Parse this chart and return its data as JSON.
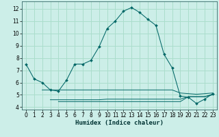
{
  "xlabel": "Humidex (Indice chaleur)",
  "bg_color": "#cceee8",
  "grid_color": "#aaddcc",
  "line_color": "#006666",
  "xlim": [
    -0.5,
    23.5
  ],
  "ylim": [
    3.8,
    12.6
  ],
  "yticks": [
    4,
    5,
    6,
    7,
    8,
    9,
    10,
    11,
    12
  ],
  "xticks": [
    0,
    1,
    2,
    3,
    4,
    5,
    6,
    7,
    8,
    9,
    10,
    11,
    12,
    13,
    14,
    15,
    16,
    17,
    18,
    19,
    20,
    21,
    22,
    23
  ],
  "series1_x": [
    0,
    1,
    2,
    3,
    4,
    5,
    6,
    7,
    8,
    9,
    10,
    11,
    12,
    13,
    14,
    15,
    16,
    17,
    18,
    19,
    20,
    21,
    22,
    23
  ],
  "series1_y": [
    7.5,
    6.3,
    6.0,
    5.4,
    5.3,
    6.2,
    7.5,
    7.5,
    7.8,
    8.9,
    10.4,
    11.0,
    11.8,
    12.1,
    11.7,
    11.15,
    10.65,
    8.3,
    7.2,
    4.9,
    4.8,
    4.3,
    4.65,
    5.1
  ],
  "series2_x": [
    2,
    3,
    4,
    5,
    6,
    7,
    8,
    9,
    10,
    11,
    12,
    13,
    14,
    15,
    16,
    17,
    18,
    19,
    20,
    21,
    22,
    23
  ],
  "series2_y": [
    5.4,
    5.4,
    5.4,
    5.4,
    5.4,
    5.4,
    5.4,
    5.4,
    5.4,
    5.4,
    5.4,
    5.4,
    5.4,
    5.4,
    5.4,
    5.4,
    5.4,
    5.15,
    5.1,
    5.05,
    5.1,
    5.15
  ],
  "series3_x": [
    3,
    4,
    5,
    6,
    7,
    8,
    9,
    10,
    11,
    12,
    13,
    14,
    15,
    16,
    17,
    18,
    19,
    20,
    21,
    22,
    23
  ],
  "series3_y": [
    4.6,
    4.6,
    4.6,
    4.6,
    4.6,
    4.6,
    4.6,
    4.65,
    4.65,
    4.65,
    4.65,
    4.65,
    4.65,
    4.65,
    4.65,
    4.65,
    4.65,
    4.85,
    4.85,
    4.85,
    5.05
  ],
  "series4_x": [
    4,
    5,
    6,
    7,
    8,
    9,
    10,
    11,
    12,
    13,
    14,
    15,
    16,
    17,
    18,
    19,
    20,
    21,
    22,
    23
  ],
  "series4_y": [
    4.45,
    4.45,
    4.45,
    4.45,
    4.45,
    4.45,
    4.45,
    4.45,
    4.45,
    4.45,
    4.45,
    4.45,
    4.45,
    4.45,
    4.45,
    4.45,
    4.85,
    4.85,
    4.85,
    5.0
  ]
}
